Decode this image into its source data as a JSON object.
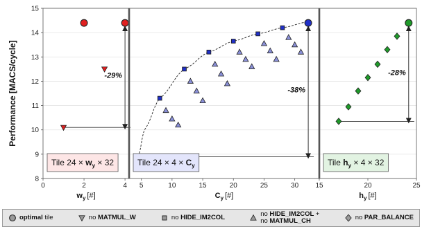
{
  "chart_data": [
    {
      "type": "scatter",
      "panel": "left",
      "ylabel": "Performance [MACS/cycle]",
      "xlabel_main": "w",
      "xlabel_sub": "y",
      "xlabel_unit": "[#]",
      "xlim": [
        0,
        4.2
      ],
      "ylim": [
        8,
        15
      ],
      "xticks": [
        "0",
        "2",
        "4"
      ],
      "yticks": [
        "8",
        "9",
        "10",
        "11",
        "12",
        "13",
        "14",
        "15"
      ],
      "tile_label": {
        "prefix": "Tile  24 × ",
        "bold_sym": "w",
        "bold_sub": "y",
        "suffix": " × 32",
        "bg": "#fde6e6"
      },
      "annotation": "-29%",
      "arrow": {
        "x": 4.0,
        "y_top": 14.4,
        "y_bottom": 10.1,
        "line_from_x": 1.0
      },
      "series": [
        {
          "name": "optimal tile",
          "marker": "circle",
          "color": "#e02020",
          "points": [
            [
              2,
              14.4
            ],
            [
              4,
              14.4
            ]
          ]
        },
        {
          "name": "no MATMUL_W",
          "marker": "triangle-down",
          "color": "#e02020",
          "points": [
            [
              3,
              12.5
            ],
            [
              1,
              10.1
            ]
          ]
        }
      ]
    },
    {
      "type": "scatter",
      "panel": "middle",
      "xlabel_main": "C",
      "xlabel_sub": "y",
      "xlabel_unit": "[#]",
      "xlim": [
        3,
        34
      ],
      "ylim": [
        8,
        15
      ],
      "xticks": [
        "5",
        "10",
        "15",
        "20",
        "25",
        "30"
      ],
      "tile_label": {
        "prefix": "Tile  24 × 4 × ",
        "bold_sym": "C",
        "bold_sub": "y",
        "suffix": "",
        "bg": "#e3e5fb"
      },
      "annotation": "-38%",
      "arrow": {
        "x": 32.2,
        "y_top": 14.4,
        "y_bottom": 8.9,
        "line_from_x": 4.5
      },
      "series": [
        {
          "name": "optimal tile",
          "marker": "circle",
          "color": "#2030c8",
          "points": [
            [
              32.2,
              14.4
            ]
          ]
        },
        {
          "name": "no HIDE_IM2COL",
          "marker": "square",
          "color": "#2030c8",
          "points": [
            [
              4.5,
              8.9
            ],
            [
              8,
              11.3
            ],
            [
              12,
              12.5
            ],
            [
              16,
              13.2
            ],
            [
              20,
              13.65
            ],
            [
              24,
              13.95
            ],
            [
              28,
              14.2
            ]
          ]
        },
        {
          "name": "no HIDE_IM2COL + no MATMUL_CH",
          "marker": "triangle-up",
          "color": "#8a90d8",
          "points": [
            [
              5,
              8.75
            ],
            [
              6,
              8.6
            ],
            [
              7,
              8.5
            ],
            [
              9,
              10.8
            ],
            [
              10,
              10.45
            ],
            [
              11,
              10.2
            ],
            [
              13,
              12.0
            ],
            [
              14,
              11.6
            ],
            [
              15,
              11.2
            ],
            [
              17,
              12.7
            ],
            [
              18,
              12.3
            ],
            [
              19,
              11.9
            ],
            [
              21,
              13.2
            ],
            [
              22,
              12.9
            ],
            [
              23,
              12.6
            ],
            [
              25,
              13.55
            ],
            [
              26,
              13.25
            ],
            [
              27,
              12.9
            ],
            [
              29,
              13.8
            ],
            [
              30,
              13.5
            ],
            [
              31,
              13.2
            ]
          ]
        }
      ],
      "curve": [
        [
          4.5,
          8.9
        ],
        [
          5.5,
          10.0
        ],
        [
          8,
          11.3
        ],
        [
          12,
          12.5
        ],
        [
          16,
          13.2
        ],
        [
          20,
          13.65
        ],
        [
          24,
          13.95
        ],
        [
          28,
          14.2
        ],
        [
          32.2,
          14.45
        ]
      ]
    },
    {
      "type": "scatter",
      "panel": "right",
      "xlabel_main": "h",
      "xlabel_sub": "y",
      "xlabel_unit": "[#]",
      "xlim": [
        15,
        25
      ],
      "ylim": [
        8,
        15
      ],
      "xticks": [
        "15",
        "20",
        "25"
      ],
      "tile_label": {
        "prefix": "Tile  ",
        "bold_sym": "h",
        "bold_sub": "y",
        "suffix": " × 4 × 32",
        "bg": "#e2f3e2"
      },
      "annotation": "-28%",
      "arrow": {
        "x": 24.2,
        "y_top": 14.4,
        "y_bottom": 10.35,
        "line_from_x": 17
      },
      "series": [
        {
          "name": "optimal tile",
          "marker": "circle",
          "color": "#1f9a2a",
          "points": [
            [
              24.2,
              14.4
            ]
          ]
        },
        {
          "name": "no PAR_BALANCE",
          "marker": "diamond",
          "color": "#1f9a2a",
          "points": [
            [
              17,
              10.35
            ],
            [
              18,
              10.95
            ],
            [
              19,
              11.6
            ],
            [
              20,
              12.15
            ],
            [
              21,
              12.7
            ],
            [
              22,
              13.3
            ],
            [
              23,
              13.85
            ]
          ]
        }
      ]
    }
  ],
  "legend": {
    "items": [
      {
        "marker": "circle",
        "bold": "optimal",
        "text": " tile"
      },
      {
        "marker": "triangle-down",
        "bold": "",
        "text": "no ",
        "bold2": "MATMUL_W"
      },
      {
        "marker": "square",
        "bold": "",
        "text": "no ",
        "bold2": "HIDE_IM2COL"
      },
      {
        "marker": "triangle-up",
        "two_line": true,
        "line1": "no ",
        "line1b": "HIDE_IM2COL",
        "line1c": " +",
        "line2": "no ",
        "line2b": "MATMUL_CH"
      },
      {
        "marker": "diamond",
        "bold": "",
        "text": "no ",
        "bold2": "PAR_BALANCE"
      }
    ]
  }
}
